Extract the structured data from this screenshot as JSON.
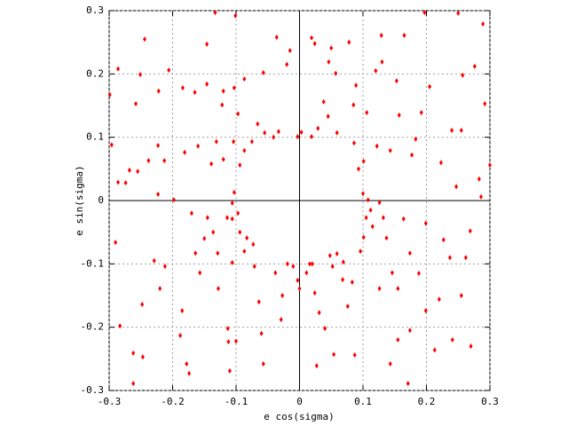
{
  "chart_data": {
    "type": "scatter",
    "xlabel": "e cos(sigma)",
    "ylabel": "e sin(sigma)",
    "xlim": [
      -0.3,
      0.3
    ],
    "ylim": [
      -0.3,
      0.3
    ],
    "xticks": [
      -0.3,
      -0.2,
      -0.1,
      0,
      0.1,
      0.2,
      0.3
    ],
    "yticks": [
      -0.3,
      -0.2,
      -0.1,
      0,
      0.1,
      0.2,
      0.3
    ],
    "grid": true,
    "zeroaxis": true,
    "color": "#ff0000",
    "x": [
      -0.133,
      -0.101,
      -0.244,
      -0.146,
      -0.286,
      -0.251,
      -0.206,
      -0.222,
      -0.258,
      -0.299,
      -0.184,
      -0.165,
      -0.146,
      -0.12,
      -0.103,
      -0.097,
      -0.122,
      -0.087,
      -0.057,
      -0.015,
      -0.02,
      -0.036,
      0.019,
      0.024,
      0.05,
      0.046,
      0.078,
      0.129,
      0.165,
      0.197,
      0.25,
      0.289,
      0.276,
      0.257,
      0.292,
      0.205,
      0.153,
      0.13,
      0.12,
      0.089,
      0.057,
      0.038,
      0.085,
      0.106,
      0.157,
      0.183,
      0.192,
      0.24,
      0.255,
      0.223,
      0.3,
      0.283,
      0.247,
      0.177,
      0.143,
      0.122,
      0.101,
      0.093,
      0.086,
      0.059,
      0.045,
      0.029,
      0.019,
      0.003,
      -0.003,
      -0.033,
      -0.041,
      -0.055,
      -0.066,
      -0.075,
      -0.087,
      -0.094,
      -0.104,
      -0.12,
      -0.139,
      -0.131,
      -0.16,
      -0.181,
      -0.223,
      -0.213,
      -0.238,
      -0.255,
      -0.268,
      -0.286,
      -0.274,
      -0.296,
      -0.223,
      -0.198,
      -0.103,
      -0.106,
      -0.29,
      -0.283,
      -0.262,
      -0.262,
      -0.247,
      -0.248,
      -0.229,
      -0.22,
      -0.212,
      -0.185,
      -0.188,
      -0.178,
      -0.174,
      -0.17,
      -0.164,
      -0.157,
      -0.15,
      -0.145,
      -0.136,
      -0.129,
      -0.128,
      -0.113,
      -0.112,
      -0.11,
      -0.1,
      -0.114,
      -0.106,
      -0.097,
      -0.094,
      -0.083,
      -0.073,
      -0.087,
      -0.106,
      -0.071,
      -0.064,
      -0.06,
      -0.057,
      -0.038,
      -0.027,
      -0.019,
      -0.01,
      -0.003,
      0,
      -0.029,
      0.011,
      0.016,
      0.02,
      0.024,
      0.031,
      0.04,
      0.052,
      0.048,
      0.059,
      0.069,
      0.068,
      0.076,
      0.083,
      0.054,
      0.027,
      0.096,
      0.101,
      0.105,
      0.108,
      0.1,
      0.112,
      0.115,
      0.126,
      0.132,
      0.137,
      0.146,
      0.126,
      0.155,
      0.164,
      0.174,
      0.188,
      0.199,
      0.22,
      0.174,
      0.155,
      0.143,
      0.171,
      0.213,
      0.241,
      0.27,
      0.255,
      0.262,
      0.237,
      0.227,
      0.199,
      0.269,
      0.286,
      0.087
    ],
    "values": [
      0.297,
      0.292,
      0.255,
      0.247,
      0.208,
      0.199,
      0.206,
      0.173,
      0.153,
      0.167,
      0.178,
      0.171,
      0.184,
      0.173,
      0.178,
      0.137,
      0.151,
      0.192,
      0.202,
      0.237,
      0.215,
      0.258,
      0.257,
      0.248,
      0.241,
      0.219,
      0.25,
      0.261,
      0.261,
      0.297,
      0.296,
      0.279,
      0.212,
      0.198,
      0.153,
      0.18,
      0.189,
      0.219,
      0.205,
      0.182,
      0.201,
      0.156,
      0.151,
      0.139,
      0.135,
      0.097,
      0.139,
      0.111,
      0.111,
      0.06,
      0.056,
      0.034,
      0.022,
      0.072,
      0.079,
      0.086,
      0.062,
      0.05,
      0.091,
      0.107,
      0.133,
      0.114,
      0.101,
      0.108,
      0.101,
      0.109,
      0.1,
      0.107,
      0.121,
      0.093,
      0.079,
      0.056,
      0.093,
      0.065,
      0.058,
      0.093,
      0.086,
      0.076,
      0.087,
      0.063,
      0.063,
      0.046,
      0.048,
      0.029,
      0.028,
      0.088,
      0.01,
      0.001,
      0.013,
      -0.004,
      -0.066,
      -0.198,
      -0.241,
      -0.289,
      -0.247,
      -0.164,
      -0.095,
      -0.139,
      -0.104,
      -0.174,
      -0.213,
      -0.258,
      -0.273,
      -0.02,
      -0.083,
      -0.114,
      -0.06,
      -0.027,
      -0.05,
      -0.083,
      -0.139,
      -0.202,
      -0.223,
      -0.269,
      -0.222,
      -0.027,
      -0.029,
      -0.02,
      -0.05,
      -0.059,
      -0.069,
      -0.08,
      -0.098,
      -0.104,
      -0.16,
      -0.21,
      -0.258,
      -0.114,
      -0.15,
      -0.1,
      -0.104,
      -0.126,
      -0.139,
      -0.188,
      -0.114,
      -0.1,
      -0.1,
      -0.146,
      -0.177,
      -0.202,
      -0.104,
      -0.087,
      -0.084,
      -0.097,
      -0.125,
      -0.167,
      -0.129,
      -0.243,
      -0.261,
      -0.08,
      -0.058,
      -0.027,
      0.001,
      0.011,
      -0.015,
      -0.041,
      -0.003,
      -0.027,
      -0.059,
      -0.114,
      -0.139,
      -0.139,
      -0.029,
      -0.083,
      -0.115,
      -0.174,
      -0.156,
      -0.205,
      -0.22,
      -0.258,
      -0.289,
      -0.236,
      -0.22,
      -0.23,
      -0.15,
      -0.09,
      -0.09,
      -0.062,
      -0.036,
      -0.048,
      0.006,
      -0.244
    ]
  }
}
